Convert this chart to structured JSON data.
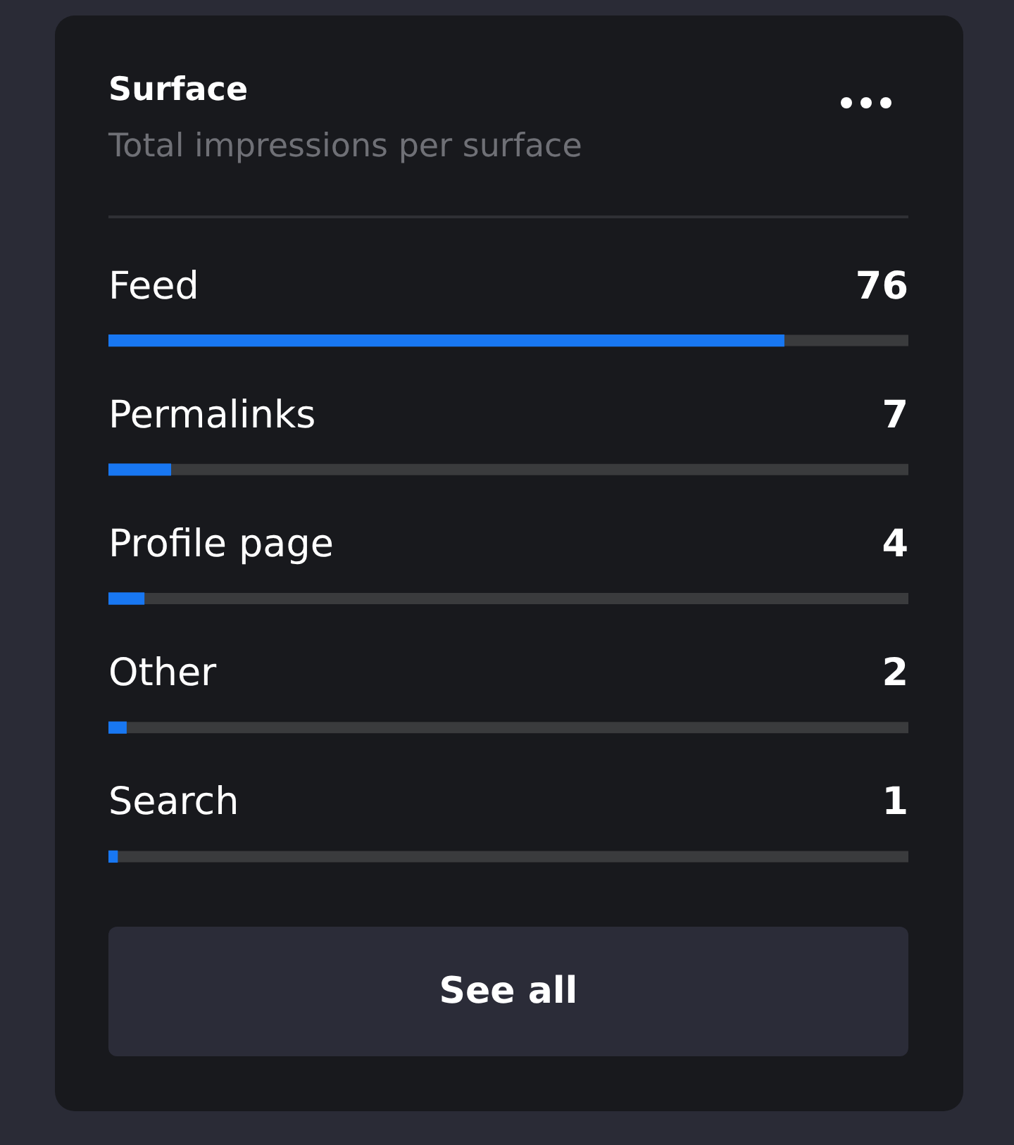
{
  "chart_data": {
    "type": "bar",
    "orientation": "horizontal",
    "title": "Surface",
    "subtitle": "Total impressions per surface",
    "categories": [
      "Feed",
      "Permalinks",
      "Profile page",
      "Other",
      "Search"
    ],
    "values": [
      76,
      7,
      4,
      2,
      1
    ],
    "color": "#1877f2",
    "xlim": [
      0,
      90
    ],
    "data_labels": true,
    "tick_labels": false,
    "legend": false,
    "annotations": [
      "See all"
    ]
  }
}
